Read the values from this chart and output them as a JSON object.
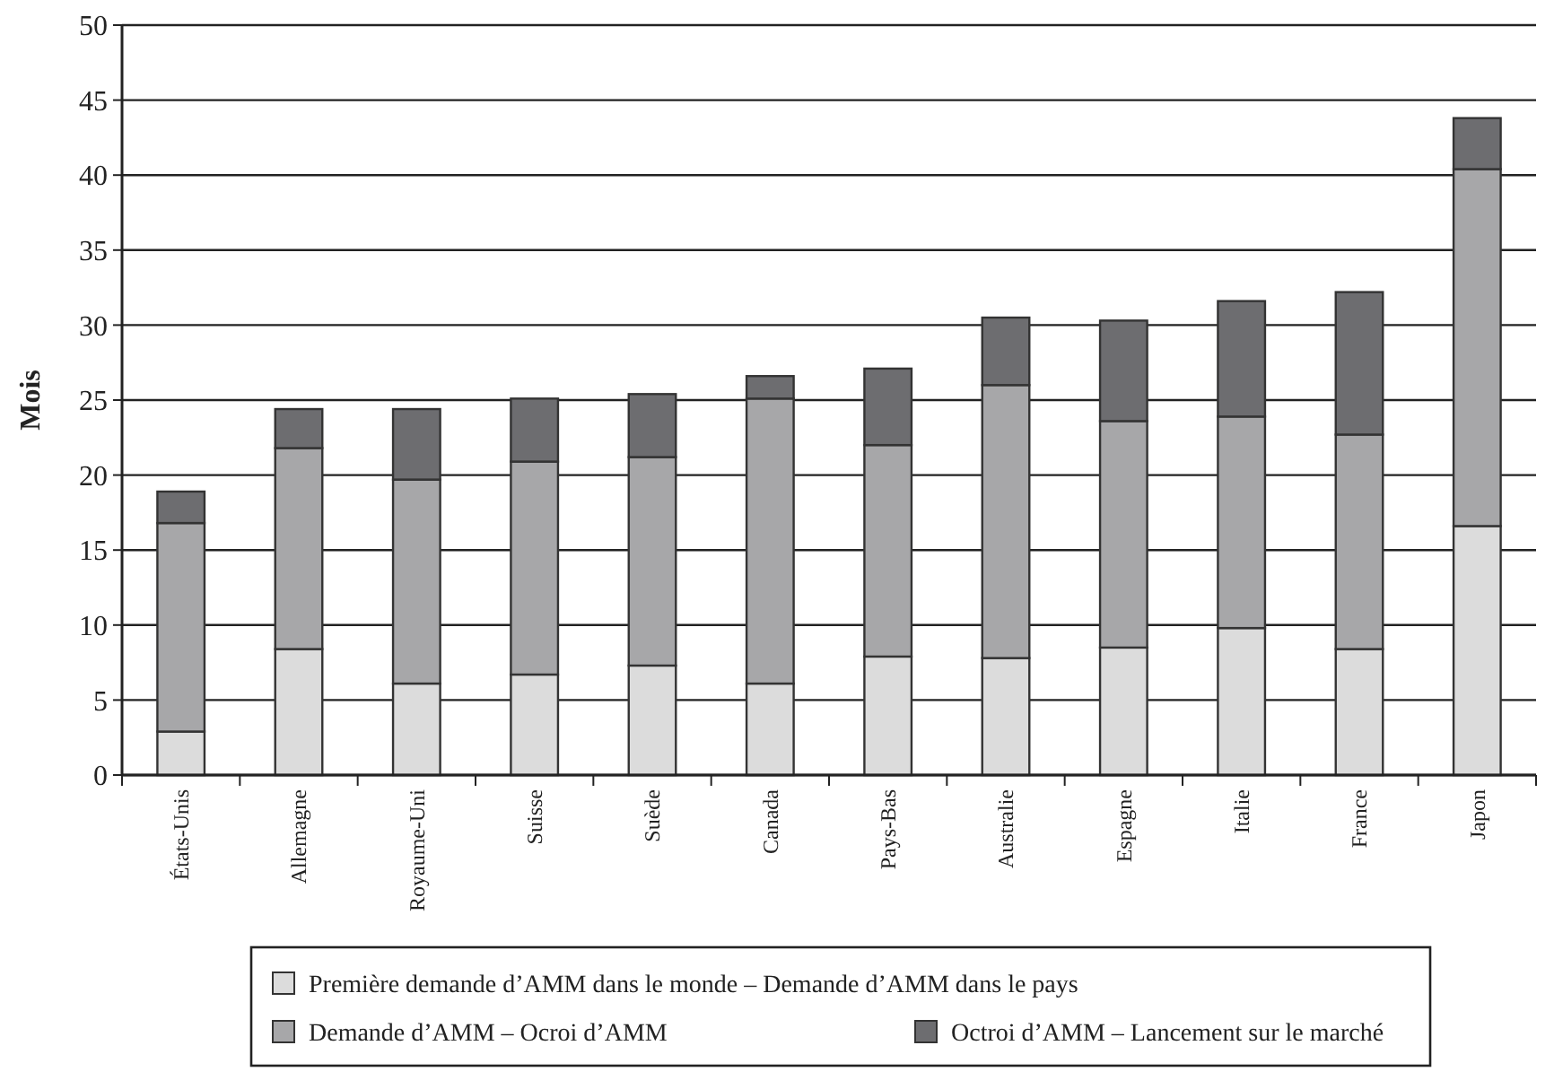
{
  "chart_data": {
    "type": "bar",
    "stacked": true,
    "ylabel": "Mois",
    "categories": [
      "États-Unis",
      "Allemagne",
      "Royaume-Uni",
      "Suisse",
      "Suède",
      "Canada",
      "Pays-Bas",
      "Australie",
      "Espagne",
      "Italie",
      "France",
      "Japon"
    ],
    "series": [
      {
        "name": "Première demande d’AMM dans le monde – Demande d’AMM dans le pays",
        "color": "#dcdcdc",
        "values": [
          2.9,
          8.4,
          6.1,
          6.7,
          7.3,
          6.1,
          7.9,
          7.8,
          8.5,
          9.8,
          8.4,
          16.6
        ]
      },
      {
        "name": "Demande d’AMM – Ocroi d’AMM",
        "color": "#a7a7a9",
        "values": [
          13.9,
          13.4,
          13.6,
          14.2,
          13.9,
          19.0,
          14.1,
          18.2,
          15.1,
          14.1,
          14.3,
          23.8
        ]
      },
      {
        "name": "Octroi d’AMM – Lancement sur le marché",
        "color": "#6d6d70",
        "values": [
          2.1,
          2.6,
          4.7,
          4.2,
          4.2,
          1.5,
          5.1,
          4.5,
          6.7,
          7.7,
          9.5,
          3.4
        ]
      }
    ],
    "ylim": [
      0,
      50
    ],
    "yticks": [
      0,
      5,
      10,
      15,
      20,
      25,
      30,
      35,
      40,
      45,
      50
    ],
    "grid": "y",
    "legend": "bottom"
  }
}
